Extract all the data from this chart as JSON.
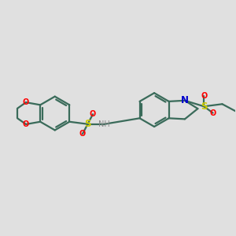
{
  "background_color": "#e0e0e0",
  "bond_color": "#3a6b5a",
  "bond_width": 1.6,
  "atom_colors": {
    "O": "#ff0000",
    "N": "#0000cc",
    "S": "#cccc00",
    "H": "#888888",
    "C": "#3a6b5a"
  },
  "figsize": [
    3.0,
    3.0
  ],
  "dpi": 100,
  "xlim": [
    0,
    10
  ],
  "ylim": [
    0,
    10
  ]
}
